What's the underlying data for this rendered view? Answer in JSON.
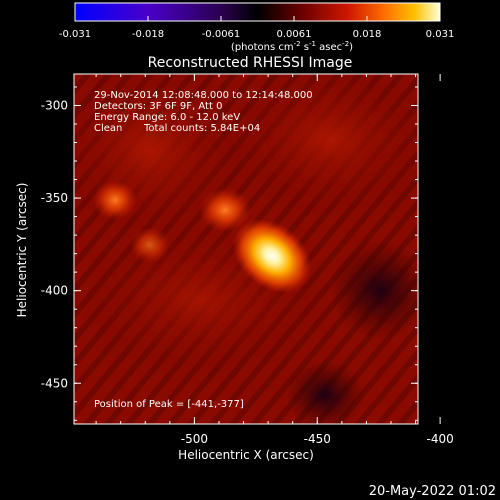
{
  "colorbar": {
    "ticks": [
      "-0.031",
      "-0.018",
      "-0.0061",
      "0.0061",
      "0.018",
      "0.031"
    ],
    "unit": "photons cm",
    "unit_exp1": "-2",
    "unit_mid": " s",
    "unit_exp2": "-1",
    "unit_tail": " asec",
    "unit_exp3": "-2"
  },
  "image": {
    "title": "Reconstructed RHESSI Image",
    "info": {
      "time_range": "29-Nov-2014 12:08:48.000 to 12:14:48.000",
      "detectors": "Detectors: 3F 6F 9F, Att 0",
      "energy": "Energy Range: 6.0 - 12.0 keV",
      "method": "Clean",
      "counts": "Total counts: 5.84E+04"
    },
    "peak_text": "Position of Peak = [-441,-377]"
  },
  "axes": {
    "xlabel": "Heliocentric X (arcsec)",
    "ylabel": "Heliocentric Y (arcsec)",
    "xticks": [
      "-500",
      "-450",
      "-400"
    ],
    "yticks": [
      "-300",
      "-350",
      "-400",
      "-450"
    ],
    "xrange": [
      -549,
      -409
    ],
    "yrange": [
      -472,
      -283
    ]
  },
  "footer": {
    "date": "20-May-2022 01:02"
  },
  "colors": {
    "background": "#000000",
    "foreground": "#ffffff",
    "colormap": [
      "#0000ff",
      "#5000c0",
      "#300050",
      "#000000",
      "#5a0000",
      "#c01000",
      "#ff6000",
      "#ffc000",
      "#ffffc0"
    ]
  }
}
